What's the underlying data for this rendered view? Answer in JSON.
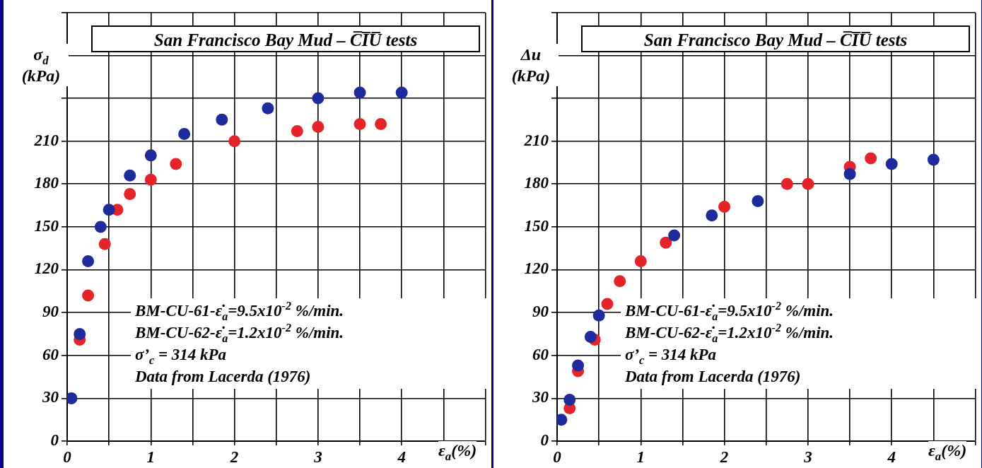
{
  "chart_data": [
    {
      "type": "scatter",
      "title": "San Francisco Bay Mud – C̅I̅U̅ tests",
      "xlabel": "ε$_{a}$(%)",
      "ylabel": "σ$_{d}$ (kPa)",
      "xlim": [
        0,
        5
      ],
      "xticks": [
        0,
        {
          "value": 0.5,
          "label": null
        },
        1,
        {
          "value": 1.5,
          "label": null
        },
        2,
        {
          "value": 2.5,
          "label": null
        },
        3,
        {
          "value": 3.5,
          "label": null
        },
        4,
        {
          "value": 4.5,
          "label": null
        },
        {
          "value": 5,
          "label": null
        }
      ],
      "ylim": [
        0,
        300
      ],
      "yticks": [
        0,
        30,
        60,
        90,
        120,
        150,
        180,
        210,
        {
          "value": 240,
          "label": null
        },
        {
          "value": 270,
          "label": null
        },
        {
          "value": 300,
          "label": null
        }
      ],
      "grid": true,
      "legend": false,
      "marker": "circle",
      "series": [
        {
          "color": "#1f2b9c",
          "x": [
            0.05,
            0.15,
            0.25,
            0.4,
            0.5,
            0.75,
            1.0,
            1.4,
            1.85,
            2.4,
            3.0,
            3.5,
            4.0
          ],
          "values": [
            30,
            75,
            126,
            150,
            162,
            186,
            200,
            215,
            225,
            233,
            240,
            244,
            244
          ]
        },
        {
          "color": "#e5232b",
          "x": [
            0.15,
            0.25,
            0.45,
            0.6,
            0.75,
            1.0,
            1.3,
            2.0,
            2.75,
            3.0,
            3.5,
            3.75
          ],
          "values": [
            71,
            102,
            138,
            162,
            173,
            183,
            194,
            210,
            217,
            220,
            222,
            222
          ]
        }
      ],
      "annotations": [
        "BM-CU-61-ε̇$_{a}$=9.5x10$^{-2}$ %/min.",
        "BM-CU-62-ε̇$_{a}$=1.2x10$^{-2}$ %/min.",
        "σ’$_{c}$ = 314 kPa",
        "Data from Lacerda (1976)"
      ]
    },
    {
      "type": "scatter",
      "title": "San Francisco Bay Mud – C̅I̅U̅ tests",
      "xlabel": "ε$_{a}$(%)",
      "ylabel": "Δu (kPa)",
      "xlim": [
        0,
        5
      ],
      "xticks": [
        0,
        {
          "value": 0.5,
          "label": null
        },
        1,
        {
          "value": 1.5,
          "label": null
        },
        2,
        {
          "value": 2.5,
          "label": null
        },
        3,
        {
          "value": 3.5,
          "label": null
        },
        4,
        {
          "value": 4.5,
          "label": null
        },
        {
          "value": 5,
          "label": null
        }
      ],
      "ylim": [
        0,
        300
      ],
      "yticks": [
        0,
        30,
        60,
        90,
        120,
        150,
        180,
        210,
        {
          "value": 240,
          "label": null
        },
        {
          "value": 270,
          "label": null
        },
        {
          "value": 300,
          "label": null
        }
      ],
      "grid": true,
      "legend": false,
      "marker": "circle",
      "series": [
        {
          "color": "#1f2b9c",
          "x": [
            0.05,
            0.15,
            0.25,
            0.4,
            0.5,
            1.4,
            1.85,
            2.4,
            3.5,
            4.0,
            4.5
          ],
          "values": [
            15,
            29,
            53,
            73,
            88,
            144,
            158,
            168,
            187,
            194,
            197
          ]
        },
        {
          "color": "#e5232b",
          "x": [
            0.15,
            0.25,
            0.45,
            0.6,
            0.75,
            1.0,
            1.3,
            2.0,
            2.75,
            3.0,
            3.5,
            3.75
          ],
          "values": [
            23,
            49,
            71,
            96,
            112,
            126,
            139,
            164,
            180,
            180,
            192,
            198
          ]
        }
      ],
      "annotations": [
        "BM-CU-61-ε̇$_{a}$=9.5x10$^{-2}$ %/min.",
        "BM-CU-62-ε̇$_{a}$=1.2x10$^{-2}$ %/min.",
        "σ’$_{c}$ = 314 kPa",
        "Data from Lacerda (1976)"
      ]
    }
  ]
}
